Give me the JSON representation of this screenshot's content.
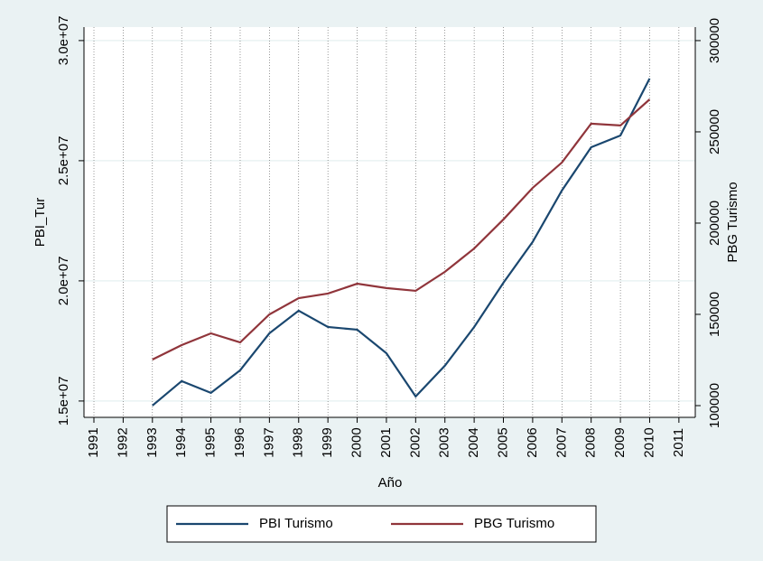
{
  "chart_data": {
    "type": "line",
    "x_label": "Año",
    "y_label": "PBI_Tur",
    "y2_label": "PBG Turismo",
    "x": [
      1993,
      1994,
      1995,
      1996,
      1997,
      1998,
      1999,
      2000,
      2001,
      2002,
      2003,
      2004,
      2005,
      2006,
      2007,
      2008,
      2009,
      2010
    ],
    "series": [
      {
        "name": "PBI Turismo",
        "color": "#1a476f",
        "axis": "y",
        "values": [
          14810000,
          15830000,
          15340000,
          16280000,
          17820000,
          18760000,
          18080000,
          17970000,
          16990000,
          15190000,
          16470000,
          18080000,
          19920000,
          21620000,
          23760000,
          25560000,
          26050000,
          28420000
        ]
      },
      {
        "name": "PBG Turismo",
        "color": "#90353b",
        "axis": "y2",
        "values": [
          125250,
          133170,
          139600,
          134650,
          150000,
          158900,
          161400,
          166800,
          164400,
          162900,
          173300,
          186100,
          202000,
          219300,
          233200,
          254500,
          253500,
          267800
        ]
      }
    ],
    "xlim": [
      1990.66,
      2011.56
    ],
    "xticks": [
      1991,
      1992,
      1993,
      1994,
      1995,
      1996,
      1997,
      1998,
      1999,
      2000,
      2001,
      2002,
      2003,
      2004,
      2005,
      2006,
      2007,
      2008,
      2009,
      2010,
      2011
    ],
    "ylim": [
      14320000,
      30560000
    ],
    "yticks": [
      {
        "value": 15000000,
        "label": "1.5e+07"
      },
      {
        "value": 20000000,
        "label": "2.0e+07"
      },
      {
        "value": 25000000,
        "label": "2.5e+07"
      },
      {
        "value": 30000000,
        "label": "3.0e+07"
      }
    ],
    "y2lim": [
      93560,
      307400
    ],
    "y2ticks": [
      100000,
      150000,
      200000,
      250000,
      300000
    ],
    "grid": true,
    "legend": "bottom"
  }
}
